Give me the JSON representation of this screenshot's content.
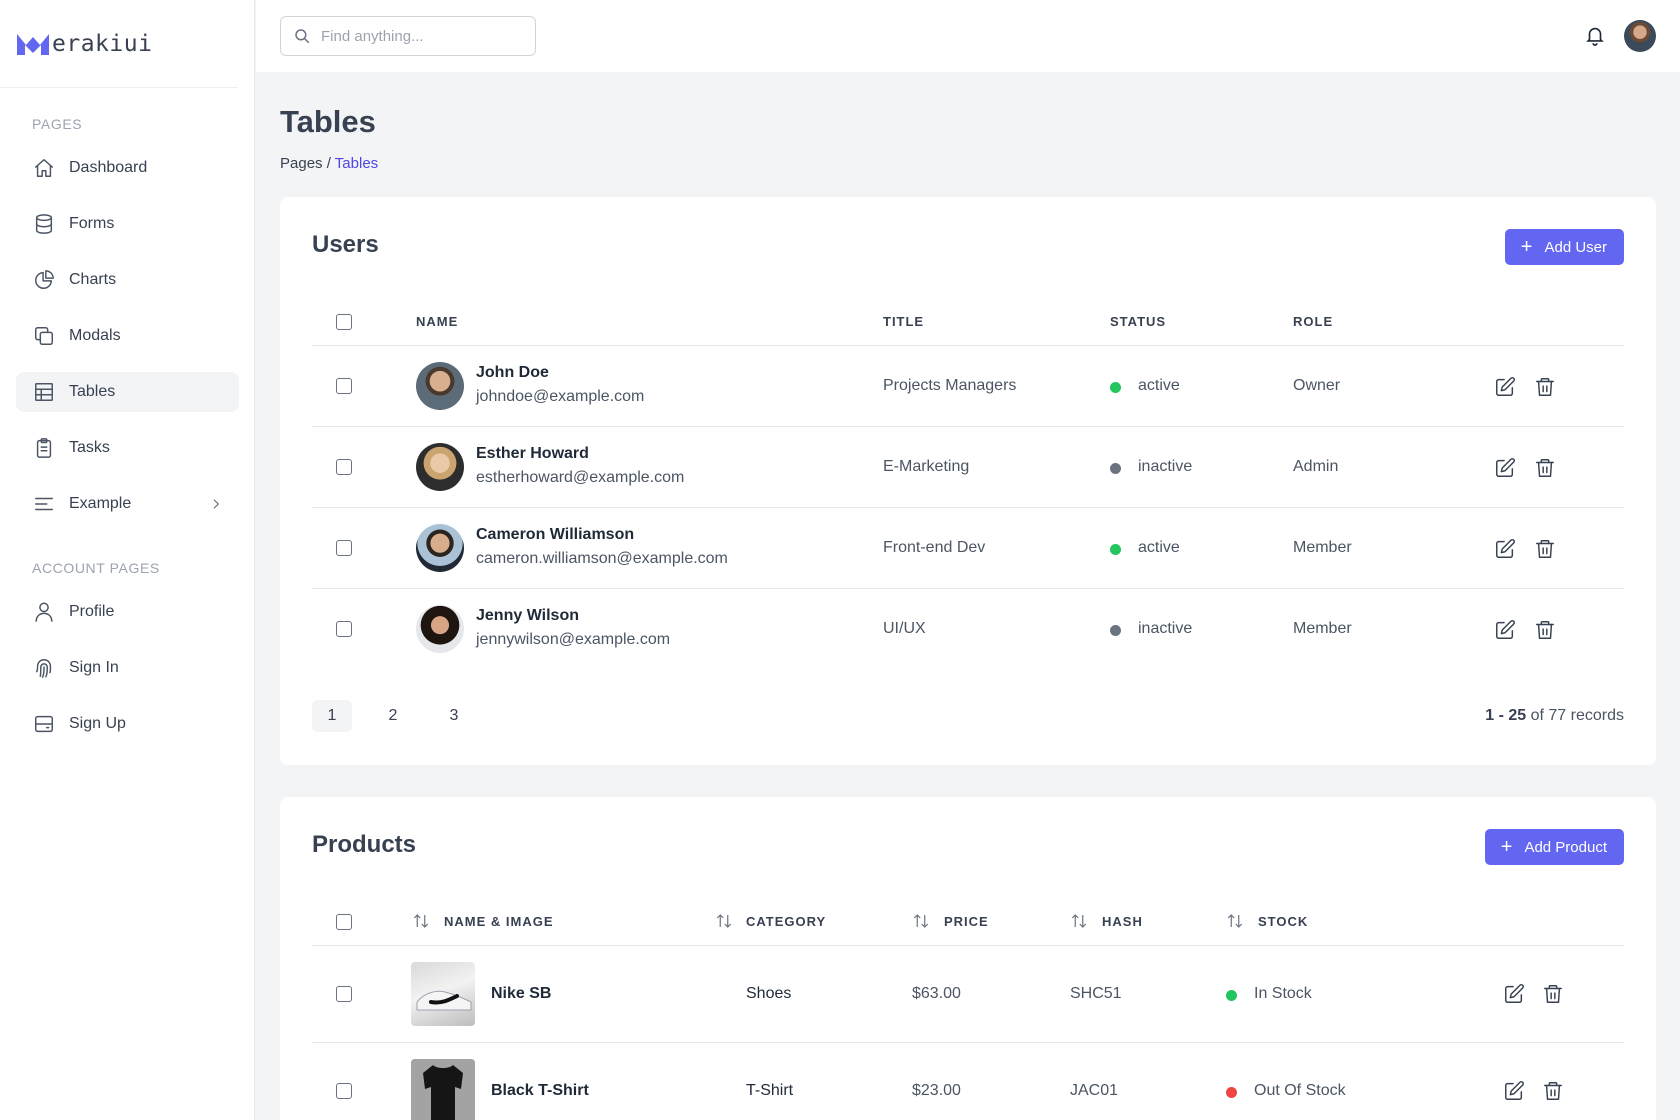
{
  "brand": {
    "name": "erakiui"
  },
  "sidebar": {
    "section_pages": "PAGES",
    "section_account": "ACCOUNT PAGES",
    "items": [
      {
        "label": "Dashboard",
        "icon": "home-icon"
      },
      {
        "label": "Forms",
        "icon": "database-icon"
      },
      {
        "label": "Charts",
        "icon": "pie-chart-icon"
      },
      {
        "label": "Modals",
        "icon": "copy-icon"
      },
      {
        "label": "Tables",
        "icon": "table-icon",
        "active": true
      },
      {
        "label": "Tasks",
        "icon": "clipboard-icon"
      },
      {
        "label": "Example",
        "icon": "menu-alt-icon",
        "has_submenu": true
      }
    ],
    "account_items": [
      {
        "label": "Profile",
        "icon": "user-icon"
      },
      {
        "label": "Sign In",
        "icon": "fingerprint-icon"
      },
      {
        "label": "Sign Up",
        "icon": "server-icon"
      }
    ]
  },
  "topbar": {
    "search_placeholder": "Find anything..."
  },
  "page": {
    "title": "Tables",
    "breadcrumb_root": "Pages",
    "breadcrumb_sep": "/",
    "breadcrumb_current": "Tables"
  },
  "users": {
    "title": "Users",
    "add_label": "Add User",
    "columns": [
      "NAME",
      "TITLE",
      "STATUS",
      "ROLE"
    ],
    "rows": [
      {
        "name": "John Doe",
        "email": "johndoe@example.com",
        "title": "Projects Managers",
        "status": "active",
        "role": "Owner"
      },
      {
        "name": "Esther Howard",
        "email": "estherhoward@example.com",
        "title": "E-Marketing",
        "status": "inactive",
        "role": "Admin"
      },
      {
        "name": "Cameron Williamson",
        "email": "cameron.williamson@example.com",
        "title": "Front-end Dev",
        "status": "active",
        "role": "Member"
      },
      {
        "name": "Jenny Wilson",
        "email": "jennywilson@example.com",
        "title": "UI/UX",
        "status": "inactive",
        "role": "Member"
      }
    ],
    "pagination": {
      "pages": [
        "1",
        "2",
        "3"
      ],
      "current": "1"
    },
    "records_range": "1 - 25",
    "records_of": "of 77 records"
  },
  "products": {
    "title": "Products",
    "add_label": "Add Product",
    "columns": [
      "NAME & IMAGE",
      "CATEGORY",
      "PRICE",
      "HASH",
      "STOCK"
    ],
    "rows": [
      {
        "name": "Nike SB",
        "category": "Shoes",
        "price": "$63.00",
        "hash": "SHC51",
        "stock": "In Stock"
      },
      {
        "name": "Black T-Shirt",
        "category": "T-Shirt",
        "price": "$23.00",
        "hash": "JAC01",
        "stock": "Out Of Stock"
      }
    ]
  },
  "colors": {
    "accent": "#6366f1",
    "active": "#22c55e",
    "inactive": "#6b7280",
    "out_of_stock": "#ef4444",
    "link": "#4f46e5"
  }
}
